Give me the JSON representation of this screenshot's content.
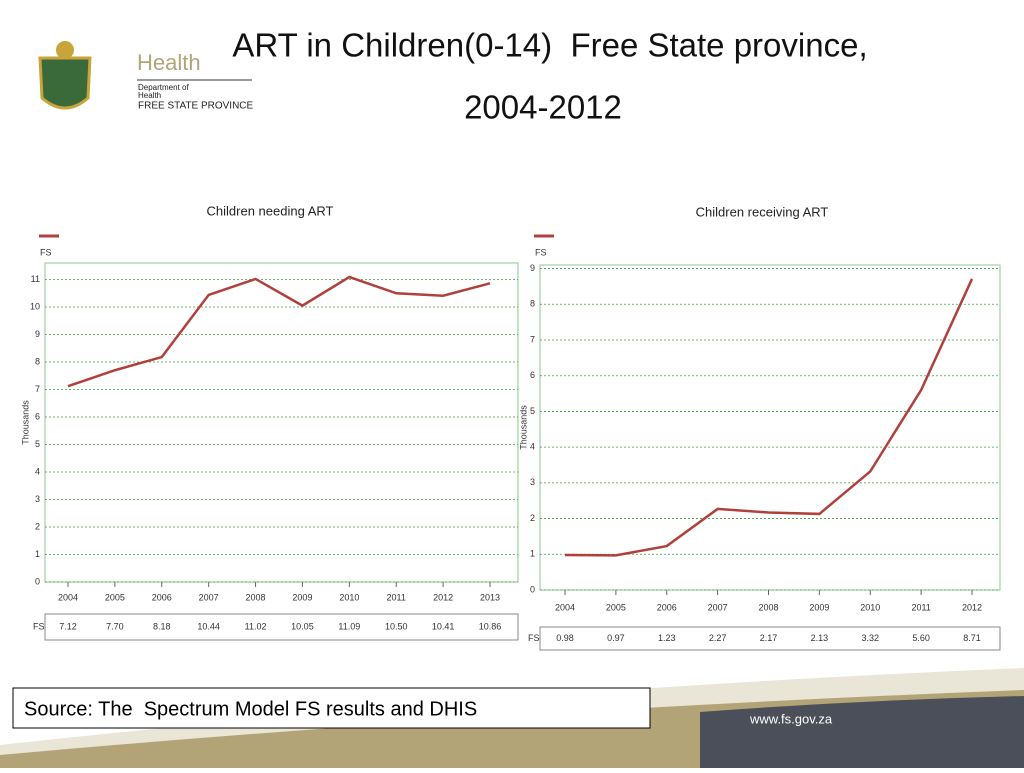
{
  "slide": {
    "title": [
      "ART in Children(0-14)  Free State province,",
      "2004-2012"
    ],
    "logo": {
      "name": "Health",
      "line1": "Department of",
      "line2": "Health",
      "line3": "FREE STATE PROVINCE"
    },
    "source": "Source: The  Spectrum Model FS results and DHIS",
    "url": "www.fs.gov.za"
  },
  "chart_data": [
    {
      "type": "line",
      "title": "Children needing ART",
      "ylabel": "Thousands",
      "categories": [
        "2004",
        "2005",
        "2006",
        "2007",
        "2008",
        "2009",
        "2010",
        "2011",
        "2012",
        "2013"
      ],
      "series": [
        {
          "name": "FS",
          "color": "#b0403c",
          "values": [
            7.12,
            7.7,
            8.18,
            10.44,
            11.02,
            10.05,
            11.09,
            10.5,
            10.41,
            10.86
          ],
          "value_labels": [
            "7.12",
            "7.70",
            "8.18",
            "10.44",
            "11.02",
            "10.05",
            "11.09",
            "10.50",
            "10.41",
            "10.86"
          ]
        }
      ],
      "ylim": [
        0,
        11.6
      ],
      "yticks": [
        0,
        1,
        2,
        3,
        4,
        5,
        6,
        7,
        8,
        9,
        10,
        11
      ],
      "grid": true
    },
    {
      "type": "line",
      "title": "Children receiving ART",
      "ylabel": "Thousands",
      "categories": [
        "2004",
        "2005",
        "2006",
        "2007",
        "2008",
        "2009",
        "2010",
        "2011",
        "2012"
      ],
      "series": [
        {
          "name": "FS",
          "color": "#b0403c",
          "values": [
            0.98,
            0.97,
            1.23,
            2.27,
            2.17,
            2.13,
            3.32,
            5.6,
            8.71
          ],
          "value_labels": [
            "0.98",
            "0.97",
            "1.23",
            "2.27",
            "2.17",
            "2.13",
            "3.32",
            "5.60",
            "8.71"
          ]
        }
      ],
      "ylim": [
        0,
        9.1
      ],
      "yticks": [
        0,
        1,
        2,
        3,
        4,
        5,
        6,
        7,
        8,
        9
      ],
      "grid": true
    }
  ]
}
